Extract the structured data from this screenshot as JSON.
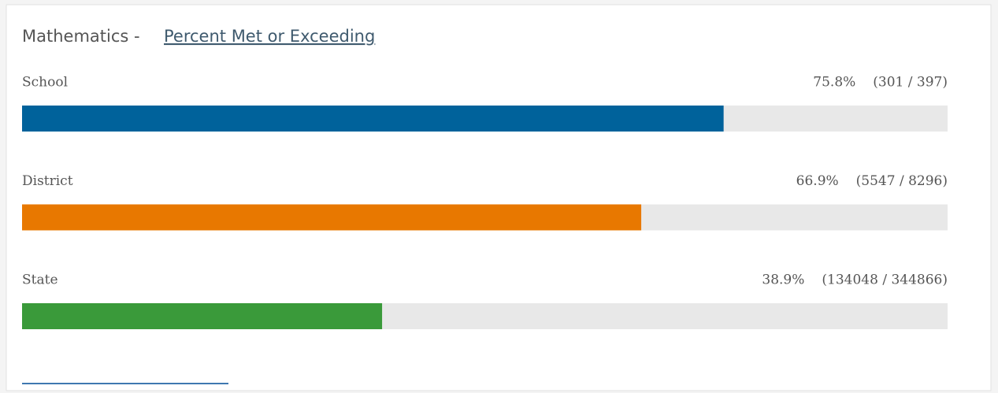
{
  "chart_data": {
    "type": "bar",
    "orientation": "horizontal",
    "title": "Mathematics -",
    "title_link": "Percent Met or Exceeding",
    "categories": [
      "School",
      "District",
      "State"
    ],
    "values": [
      75.8,
      66.9,
      38.9
    ],
    "value_labels": [
      "75.8%",
      "66.9%",
      "38.9%"
    ],
    "details": [
      "(301 / 397)",
      "(5547 / 8296)",
      "(134048 / 344866)"
    ],
    "colors": [
      "#00629b",
      "#e87800",
      "#3a9a3a"
    ],
    "track_color": "#e8e8e8",
    "xlim": [
      0,
      100
    ]
  }
}
